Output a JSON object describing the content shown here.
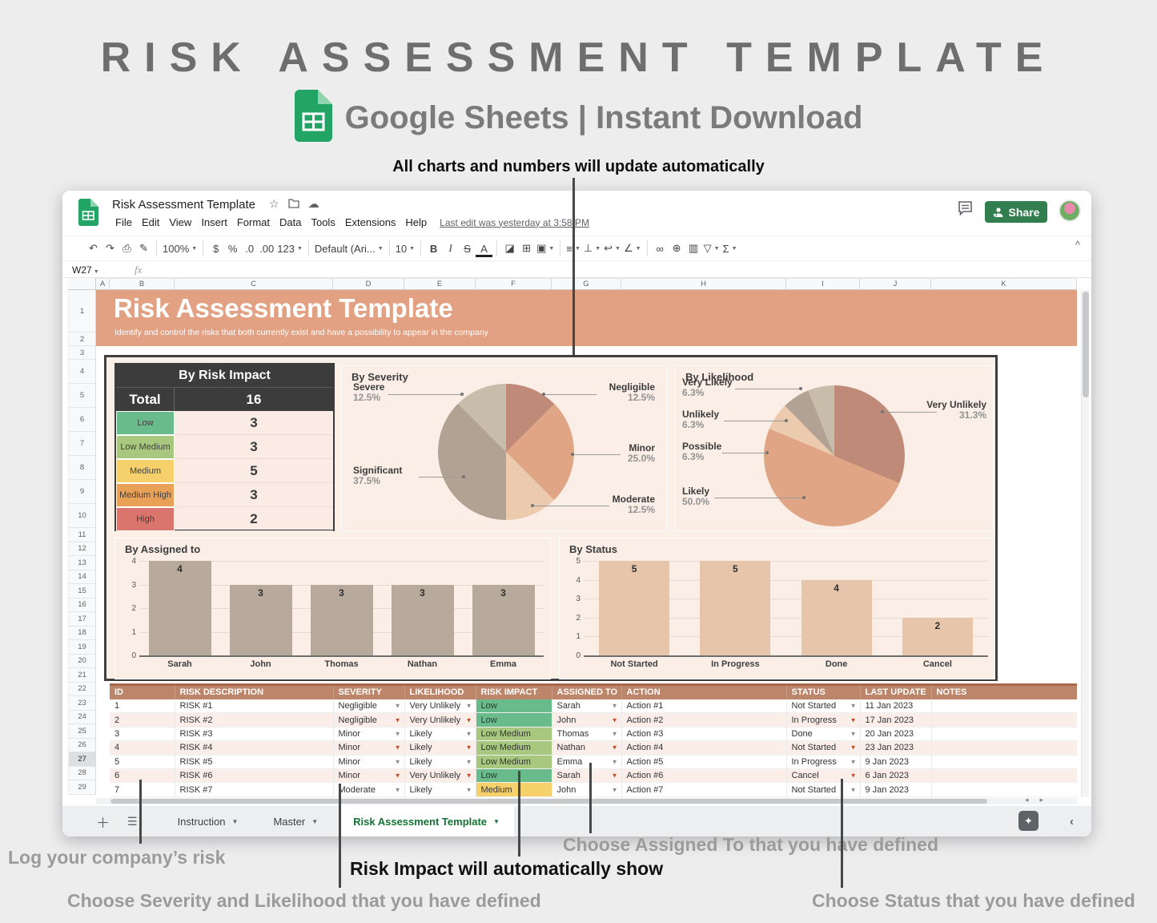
{
  "hero": {
    "title": "RISK ASSESSMENT TEMPLATE",
    "subtitle": "Google Sheets | Instant Download",
    "note": "All charts and numbers will update automatically"
  },
  "window": {
    "doc_title": "Risk Assessment Template",
    "menu_items": [
      "File",
      "Edit",
      "View",
      "Insert",
      "Format",
      "Data",
      "Tools",
      "Extensions",
      "Help"
    ],
    "last_edit": "Last edit was yesterday at 3:58 PM",
    "share_label": "Share",
    "name_box": "W27",
    "fx_label": "fx",
    "toolbar_items": [
      {
        "n": "undo",
        "g": "↶"
      },
      {
        "n": "redo",
        "g": "↷"
      },
      {
        "n": "print",
        "g": "⎙"
      },
      {
        "n": "paint-format",
        "g": "✎"
      },
      {
        "sep": true
      },
      {
        "n": "zoom",
        "g": "100%",
        "caret": true
      },
      {
        "sep": true
      },
      {
        "n": "currency-format",
        "g": "$"
      },
      {
        "n": "percent-format",
        "g": "%"
      },
      {
        "n": "decrease-decimal",
        "g": ".0"
      },
      {
        "n": "increase-decimal",
        "g": ".00"
      },
      {
        "n": "number-format",
        "g": "123",
        "caret": true
      },
      {
        "sep": true
      },
      {
        "n": "font-select",
        "g": "Default (Ari...",
        "caret": true,
        "wide": true
      },
      {
        "sep": true
      },
      {
        "n": "font-size",
        "g": "10",
        "caret": true
      },
      {
        "sep": true
      },
      {
        "n": "bold",
        "g": "B",
        "bold": true
      },
      {
        "n": "italic",
        "g": "I",
        "italic": true
      },
      {
        "n": "strikethrough",
        "g": "S",
        "strike": true
      },
      {
        "n": "text-color",
        "g": "A",
        "underA": true
      },
      {
        "sep": true
      },
      {
        "n": "fill-color",
        "g": "◪"
      },
      {
        "n": "borders",
        "g": "⊞"
      },
      {
        "n": "merge-cells",
        "g": "▣",
        "caret": true
      },
      {
        "sep": true
      },
      {
        "n": "horizontal-align",
        "g": "≡",
        "caret": true
      },
      {
        "n": "vertical-align",
        "g": "⊥",
        "caret": true
      },
      {
        "n": "text-wrap",
        "g": "↩",
        "caret": true
      },
      {
        "n": "text-rotation",
        "g": "∠",
        "caret": true
      },
      {
        "sep": true
      },
      {
        "n": "insert-link",
        "g": "∞"
      },
      {
        "n": "insert-comment",
        "g": "⊕"
      },
      {
        "n": "insert-chart",
        "g": "▥"
      },
      {
        "n": "filter",
        "g": "▽",
        "caret": true
      },
      {
        "n": "functions",
        "g": "Σ",
        "caret": true
      }
    ],
    "collapse_glyph": "^",
    "column_headers": [
      "A",
      "B",
      "C",
      "D",
      "E",
      "F",
      "G",
      "H",
      "I",
      "J",
      "K"
    ],
    "row_count": 29,
    "selected_row": 27,
    "tabs": [
      {
        "label": "Instruction",
        "active": false
      },
      {
        "label": "Master",
        "active": false
      },
      {
        "label": "Risk Assessment Template",
        "active": true
      }
    ]
  },
  "sheet_header": {
    "title": "Risk Assessment Template",
    "subtitle": "Identify and control the risks that both currently exist and have a possibility to appear in the company",
    "band_color": "#e2a183"
  },
  "impact_table": {
    "title": "By Risk Impact",
    "total_label": "Total",
    "total_value": "16",
    "rows": [
      {
        "label": "Low",
        "value": "3",
        "color": "#6abb8c"
      },
      {
        "label": "Low Medium",
        "value": "3",
        "color": "#a9c87f"
      },
      {
        "label": "Medium",
        "value": "5",
        "color": "#f6d16b"
      },
      {
        "label": "Medium High",
        "value": "3",
        "color": "#e9a158"
      },
      {
        "label": "High",
        "value": "2",
        "color": "#d9756d"
      }
    ]
  },
  "chart_data": [
    {
      "type": "pie",
      "title": "By Severity",
      "slices": [
        {
          "label": "Negligible",
          "value": 12.5,
          "pct_label": "12.5%",
          "color": "#c08a78"
        },
        {
          "label": "Minor",
          "value": 25.0,
          "pct_label": "25.0%",
          "color": "#e0a585"
        },
        {
          "label": "Moderate",
          "value": 12.5,
          "pct_label": "12.5%",
          "color": "#eccaae"
        },
        {
          "label": "Significant",
          "value": 37.5,
          "pct_label": "37.5%",
          "color": "#b1a294"
        },
        {
          "label": "Severe",
          "value": 12.5,
          "pct_label": "12.5%",
          "color": "#c8bcab"
        }
      ],
      "start_angle_deg": 0,
      "direction": "clockwise",
      "legend_position": "callout-labels"
    },
    {
      "type": "pie",
      "title": "By Likelihood",
      "slices": [
        {
          "label": "Very Unlikely",
          "value": 31.3,
          "pct_label": "31.3%",
          "color": "#c08a78"
        },
        {
          "label": "Likely",
          "value": 50.0,
          "pct_label": "50.0%",
          "color": "#e0a585"
        },
        {
          "label": "Possible",
          "value": 6.3,
          "pct_label": "6.3%",
          "color": "#eccaae"
        },
        {
          "label": "Unlikely",
          "value": 6.3,
          "pct_label": "6.3%",
          "color": "#b1a294"
        },
        {
          "label": "Very Likely",
          "value": 6.3,
          "pct_label": "6.3%",
          "color": "#c8bcab"
        }
      ],
      "start_angle_deg": 0,
      "direction": "clockwise",
      "legend_position": "callout-labels"
    },
    {
      "type": "bar",
      "title": "By Assigned to",
      "categories": [
        "Sarah",
        "John",
        "Thomas",
        "Nathan",
        "Emma"
      ],
      "values": [
        4,
        3,
        3,
        3,
        3
      ],
      "ylim": [
        0,
        4
      ],
      "yticks": [
        0,
        1,
        2,
        3,
        4
      ],
      "grid": true,
      "bar_color": "#b7a99b"
    },
    {
      "type": "bar",
      "title": "By Status",
      "categories": [
        "Not Started",
        "In Progress",
        "Done",
        "Cancel"
      ],
      "values": [
        5,
        5,
        4,
        2
      ],
      "ylim": [
        0,
        5
      ],
      "yticks": [
        0,
        1,
        2,
        3,
        4,
        5
      ],
      "grid": true,
      "bar_color": "#e7c5ab"
    }
  ],
  "risk_table": {
    "headers": [
      "ID",
      "RISK DESCRIPTION",
      "SEVERITY",
      "LIKELIHOOD",
      "RISK IMPACT",
      "ASSIGNED TO",
      "ACTION",
      "STATUS",
      "LAST UPDATE",
      "NOTES"
    ],
    "impact_colors": {
      "Low": "#6abb8c",
      "Low Medium": "#a9c87f",
      "Medium": "#f6d16b"
    },
    "rows": [
      {
        "id": "1",
        "description": "RISK #1",
        "severity": "Negligible",
        "likelihood": "Very Unlikely",
        "impact": "Low",
        "assigned": "Sarah",
        "action": "Action #1",
        "status": "Not Started",
        "updated": "11 Jan 2023",
        "notes": ""
      },
      {
        "id": "2",
        "description": "RISK #2",
        "severity": "Negligible",
        "likelihood": "Very Unlikely",
        "impact": "Low",
        "assigned": "John",
        "action": "Action #2",
        "status": "In Progress",
        "updated": "17 Jan 2023",
        "notes": ""
      },
      {
        "id": "3",
        "description": "RISK #3",
        "severity": "Minor",
        "likelihood": "Likely",
        "impact": "Low Medium",
        "assigned": "Thomas",
        "action": "Action #3",
        "status": "Done",
        "updated": "20 Jan 2023",
        "notes": ""
      },
      {
        "id": "4",
        "description": "RISK #4",
        "severity": "Minor",
        "likelihood": "Likely",
        "impact": "Low Medium",
        "assigned": "Nathan",
        "action": "Action #4",
        "status": "Not Started",
        "updated": "23 Jan 2023",
        "notes": ""
      },
      {
        "id": "5",
        "description": "RISK #5",
        "severity": "Minor",
        "likelihood": "Likely",
        "impact": "Low Medium",
        "assigned": "Emma",
        "action": "Action #5",
        "status": "In Progress",
        "updated": "9 Jan 2023",
        "notes": ""
      },
      {
        "id": "6",
        "description": "RISK #6",
        "severity": "Minor",
        "likelihood": "Very Unlikely",
        "impact": "Low",
        "assigned": "Sarah",
        "action": "Action #6",
        "status": "Cancel",
        "updated": "6 Jan 2023",
        "notes": ""
      },
      {
        "id": "7",
        "description": "RISK #7",
        "severity": "Moderate",
        "likelihood": "Likely",
        "impact": "Medium",
        "assigned": "John",
        "action": "Action #7",
        "status": "Not Started",
        "updated": "9 Jan 2023",
        "notes": ""
      }
    ]
  },
  "annotations": {
    "log": "Log your company’s risk",
    "severity": "Choose Severity and Likelihood that you have defined",
    "impact": "Risk Impact will automatically show",
    "assigned": "Choose Assigned To that you have defined",
    "status": "Choose Status that you have defined"
  }
}
